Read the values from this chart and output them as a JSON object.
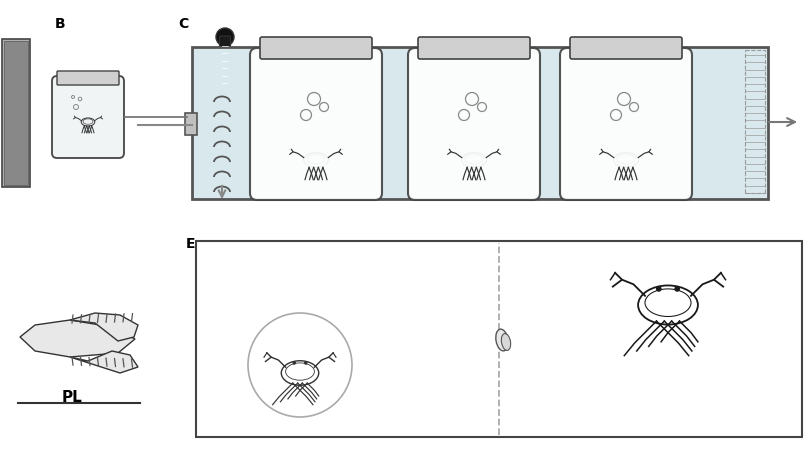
{
  "bg_color": "#ffffff",
  "label_B": "B",
  "label_C": "C",
  "label_E": "E",
  "label_PL": "PL",
  "tank_color": "#d8e8ec",
  "tank_edge": "#555555",
  "jar_color": "#e8f0f2",
  "jar_edge": "#444444",
  "arrow_color": "#888888",
  "dashed_color": "#aaaaaa"
}
